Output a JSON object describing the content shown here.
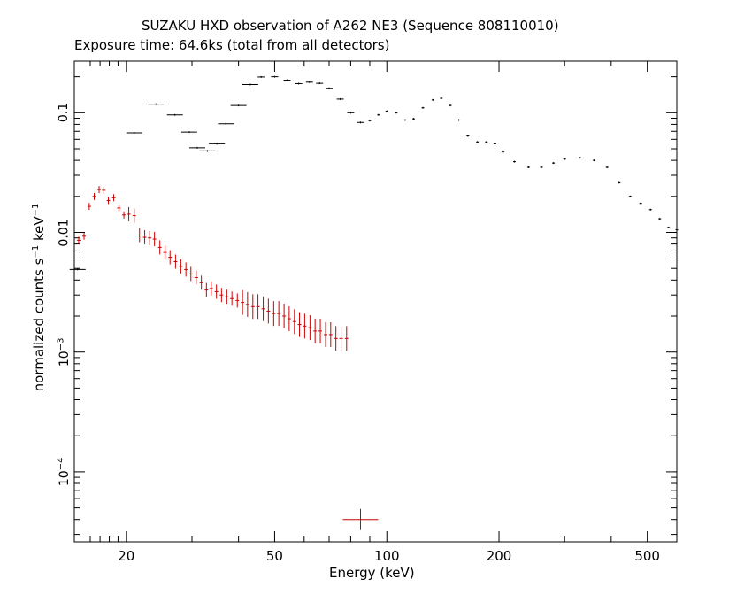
{
  "chart_data": {
    "type": "scatter",
    "title": "SUZAKU HXD observation of A262 NE3 (Sequence 808110010)",
    "subtitle": "Exposure time: 64.6ks (total from all detectors)",
    "xlabel": "Energy (keV)",
    "ylabel": {
      "base": "normalized counts s",
      "exp1": "−1",
      "mid": " keV",
      "exp2": "−1"
    },
    "xscale": "log",
    "yscale": "log",
    "xlim": [
      14.5,
      600
    ],
    "ylim": [
      2.6e-05,
      0.27
    ],
    "x_ticks": [
      {
        "value": 20,
        "label": "20"
      },
      {
        "value": 50,
        "label": "50"
      },
      {
        "value": 100,
        "label": "100"
      },
      {
        "value": 200,
        "label": "200"
      },
      {
        "value": 500,
        "label": "500"
      }
    ],
    "y_ticks": [
      {
        "value": 0.1,
        "mant": "0.1",
        "exp": ""
      },
      {
        "value": 0.01,
        "mant": "0.01",
        "exp": ""
      },
      {
        "value": 0.001,
        "mant": "10",
        "exp": "−3"
      },
      {
        "value": 0.0001,
        "mant": "10",
        "exp": "−4"
      }
    ],
    "series": [
      {
        "color": "#000000",
        "marker": "cross",
        "points": [
          [
            14.8,
            0.0049
          ],
          [
            21.0,
            0.068
          ],
          [
            24.0,
            0.118
          ],
          [
            27.0,
            0.096
          ],
          [
            29.5,
            0.069
          ],
          [
            31.0,
            0.051
          ],
          [
            33.0,
            0.048
          ],
          [
            35.0,
            0.055
          ],
          [
            37.0,
            0.081
          ],
          [
            40.0,
            0.115
          ],
          [
            43.0,
            0.172
          ],
          [
            46.0,
            0.199
          ],
          [
            50.0,
            0.2
          ],
          [
            54.0,
            0.187
          ],
          [
            58.0,
            0.175
          ],
          [
            62.0,
            0.18
          ],
          [
            66.0,
            0.176
          ],
          [
            70.0,
            0.16
          ],
          [
            75.0,
            0.13
          ],
          [
            80.0,
            0.1
          ],
          [
            85.0,
            0.083
          ],
          [
            90.0,
            0.086
          ],
          [
            95.0,
            0.096
          ],
          [
            100.0,
            0.103
          ],
          [
            106.0,
            0.1
          ],
          [
            112.0,
            0.087
          ],
          [
            118.0,
            0.089
          ],
          [
            125.0,
            0.11
          ],
          [
            133.0,
            0.128
          ],
          [
            140.0,
            0.132
          ],
          [
            148.0,
            0.115
          ],
          [
            156.0,
            0.087
          ],
          [
            165.0,
            0.064
          ],
          [
            175.0,
            0.057
          ],
          [
            185.0,
            0.057
          ],
          [
            195.0,
            0.055
          ],
          [
            205.0,
            0.047
          ],
          [
            220.0,
            0.039
          ],
          [
            240.0,
            0.035
          ],
          [
            260.0,
            0.035
          ],
          [
            280.0,
            0.038
          ],
          [
            300.0,
            0.041
          ],
          [
            330.0,
            0.042
          ],
          [
            360.0,
            0.04
          ],
          [
            390.0,
            0.035
          ],
          [
            420.0,
            0.026
          ],
          [
            450.0,
            0.02
          ],
          [
            480.0,
            0.0175
          ],
          [
            510.0,
            0.0155
          ],
          [
            540.0,
            0.013
          ],
          [
            570.0,
            0.011
          ],
          [
            600.0,
            0.0105
          ]
        ]
      },
      {
        "color": "#cc0000",
        "marker": "cross",
        "points": [
          [
            14.9,
            0.0086
          ],
          [
            15.4,
            0.0093
          ],
          [
            15.9,
            0.0165
          ],
          [
            16.4,
            0.02
          ],
          [
            16.9,
            0.0228
          ],
          [
            17.4,
            0.0225
          ],
          [
            17.9,
            0.0185
          ],
          [
            18.5,
            0.0195
          ],
          [
            19.1,
            0.016
          ],
          [
            19.7,
            0.014
          ],
          [
            20.3,
            0.0142
          ],
          [
            21.0,
            0.0138
          ],
          [
            21.7,
            0.0095
          ],
          [
            22.4,
            0.0091
          ],
          [
            23.1,
            0.009
          ],
          [
            23.8,
            0.0088
          ],
          [
            24.6,
            0.0075
          ],
          [
            25.4,
            0.0068
          ],
          [
            26.2,
            0.0062
          ],
          [
            27.1,
            0.0057
          ],
          [
            28.0,
            0.0052
          ],
          [
            28.9,
            0.0049
          ],
          [
            29.8,
            0.0045
          ],
          [
            30.8,
            0.0042
          ],
          [
            31.8,
            0.0038
          ],
          [
            32.8,
            0.0033
          ],
          [
            33.8,
            0.0034
          ],
          [
            34.9,
            0.0032
          ],
          [
            36.0,
            0.003
          ],
          [
            37.2,
            0.0029
          ],
          [
            38.4,
            0.0028
          ],
          [
            39.7,
            0.0027
          ],
          [
            41.0,
            0.0026
          ],
          [
            42.3,
            0.0025
          ],
          [
            43.7,
            0.0024
          ],
          [
            45.1,
            0.0024
          ],
          [
            46.6,
            0.0023
          ],
          [
            48.1,
            0.0022
          ],
          [
            49.7,
            0.0021
          ],
          [
            51.3,
            0.0021
          ],
          [
            53.0,
            0.002
          ],
          [
            54.7,
            0.0019
          ],
          [
            56.5,
            0.0018
          ],
          [
            58.3,
            0.0017
          ],
          [
            60.2,
            0.00165
          ],
          [
            62.2,
            0.0016
          ],
          [
            64.2,
            0.0015
          ],
          [
            66.3,
            0.0015
          ],
          [
            68.5,
            0.0014
          ],
          [
            70.7,
            0.0014
          ],
          [
            73.0,
            0.0013
          ],
          [
            75.4,
            0.0013
          ],
          [
            78.0,
            0.0013
          ],
          [
            85.0,
            4e-05
          ]
        ]
      }
    ],
    "grid": false,
    "legend": "none"
  }
}
